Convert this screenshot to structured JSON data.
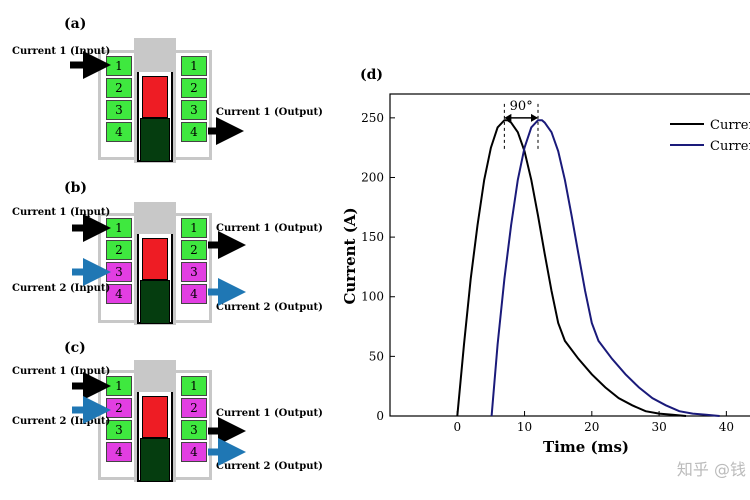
{
  "panels": {
    "a": {
      "label": "(a)",
      "inputs": [
        "Current 1 (Input)"
      ],
      "outputs": [
        "Current 1 (Output)"
      ],
      "left_coils": [
        "1",
        "2",
        "3",
        "4"
      ],
      "right_coils": [
        "1",
        "2",
        "3",
        "4"
      ]
    },
    "b": {
      "label": "(b)",
      "inputs": [
        "Current 1 (Input)",
        "Current 2 (Input)"
      ],
      "outputs": [
        "Current 1 (Output)",
        "Current 2 (Output)"
      ],
      "left_coils": [
        "1",
        "2",
        "3",
        "4"
      ],
      "right_coils": [
        "1",
        "2",
        "3",
        "4"
      ]
    },
    "c": {
      "label": "(c)",
      "inputs": [
        "Current 1 (Input)",
        "Current 2 (Input)"
      ],
      "outputs": [
        "Current 1 (Output)",
        "Current 2 (Output)"
      ],
      "left_coils": [
        "1",
        "2",
        "3",
        "4"
      ],
      "right_coils": [
        "1",
        "2",
        "3",
        "4"
      ]
    }
  },
  "colors": {
    "coil_group1": "#3fe83f",
    "coil_group2": "#e23ee2",
    "arrow_current1": "#000000",
    "arrow_current2": "#1f77b4",
    "projectile_front": "#ee1c24",
    "projectile_back": "#053d0f",
    "frame": "#c8c8c8",
    "series_current1": "#000000",
    "series_current2": "#1a1a7a"
  },
  "chart_data": {
    "type": "line",
    "panel_label": "(d)",
    "xlabel": "Time (ms)",
    "ylabel": "Current (A)",
    "xlim": [
      -10,
      45
    ],
    "ylim": [
      0,
      270
    ],
    "xticks": [
      0,
      10,
      20,
      30,
      40
    ],
    "yticks": [
      0,
      50,
      100,
      150,
      200,
      250
    ],
    "legend": {
      "placement": "top-right",
      "entries": [
        "Curren",
        "Curren"
      ]
    },
    "annotation": "90°",
    "series": [
      {
        "name": "Curren",
        "color": "#000000",
        "x": [
          0,
          1,
          2,
          3,
          4,
          5,
          6,
          7,
          7.5,
          8,
          9,
          10,
          11,
          12,
          13,
          14,
          15,
          16,
          18,
          20,
          22,
          24,
          26,
          28,
          30,
          32,
          34
        ],
        "y": [
          0,
          60,
          115,
          160,
          198,
          225,
          242,
          248,
          248,
          246,
          238,
          222,
          198,
          168,
          136,
          105,
          78,
          63,
          48,
          35,
          24,
          15,
          9,
          4,
          2,
          1,
          0
        ]
      },
      {
        "name": "Curren",
        "color": "#1a1a7a",
        "x": [
          5.1,
          6,
          7,
          8,
          9,
          10,
          11,
          12,
          12.6,
          13,
          14,
          15,
          16,
          17,
          18,
          19,
          20,
          21,
          23,
          25,
          27,
          29,
          31,
          33,
          35,
          37,
          39
        ],
        "y": [
          0,
          60,
          115,
          160,
          198,
          225,
          242,
          248,
          248,
          246,
          238,
          222,
          198,
          168,
          136,
          105,
          78,
          63,
          48,
          35,
          24,
          15,
          9,
          4,
          2,
          1,
          0
        ]
      }
    ]
  },
  "watermark": "知乎 @钱"
}
